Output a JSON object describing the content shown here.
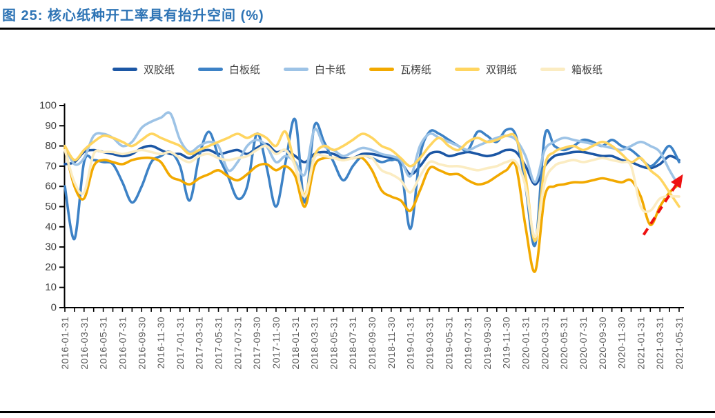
{
  "title": "图 25: 核心纸种开工率具有抬升空间 (%)",
  "colors": {
    "title_blue": "#2E74B5",
    "axis_black": "#000000",
    "x_label_gray": "#595959",
    "y_label_gray": "#3F3F3F",
    "arrow_red": "#EE1111"
  },
  "chart_data": {
    "type": "line",
    "title": "核心纸种开工率具有抬升空间 (%)",
    "ylim": [
      0,
      100
    ],
    "ytick_step": 10,
    "grid": false,
    "legend_position": "top",
    "x_start": "2016-01",
    "x_interval": "monthly",
    "x_tick_labels": [
      "2016-01-31",
      "2016-03-31",
      "2016-05-31",
      "2016-07-31",
      "2016-09-30",
      "2016-11-30",
      "2017-01-31",
      "2017-03-31",
      "2017-05-31",
      "2017-07-31",
      "2017-09-30",
      "2017-11-30",
      "2018-01-31",
      "2018-03-31",
      "2018-05-31",
      "2018-07-31",
      "2018-09-30",
      "2018-11-30",
      "2019-01-31",
      "2019-03-31",
      "2019-05-31",
      "2019-07-31",
      "2019-09-30",
      "2019-11-30",
      "2020-01-31",
      "2020-03-31",
      "2020-05-31",
      "2020-07-31",
      "2020-09-30",
      "2020-11-30",
      "2021-01-31",
      "2021-03-31",
      "2021-05-31"
    ],
    "series": [
      {
        "name": "双胶纸",
        "color": "#1C57A5",
        "values": [
          71,
          72,
          77,
          78,
          77,
          76,
          75,
          76,
          79,
          80,
          78,
          76,
          76,
          74,
          77,
          78,
          76,
          77,
          78,
          76,
          79,
          81,
          77,
          78,
          75,
          72,
          76,
          77,
          76,
          74,
          74,
          76,
          76,
          75,
          74,
          72,
          66,
          70,
          76,
          77,
          75,
          76,
          77,
          76,
          75,
          76,
          78,
          77,
          70,
          61,
          70,
          75,
          76,
          77,
          77,
          76,
          75,
          75,
          73,
          72,
          70,
          69,
          71,
          75,
          73
        ]
      },
      {
        "name": "白板纸",
        "color": "#3D82C6",
        "values": [
          60,
          34,
          72,
          73,
          72,
          71,
          62,
          52,
          60,
          72,
          75,
          77,
          70,
          53,
          75,
          87,
          75,
          65,
          54,
          60,
          86,
          70,
          50,
          72,
          93,
          52,
          90,
          82,
          72,
          63,
          70,
          75,
          74,
          72,
          73,
          70,
          39,
          75,
          87,
          86,
          83,
          80,
          78,
          87,
          85,
          82,
          88,
          85,
          60,
          31,
          85,
          80,
          78,
          80,
          83,
          82,
          80,
          83,
          80,
          78,
          74,
          70,
          74,
          80,
          72
        ]
      },
      {
        "name": "白卡纸",
        "color": "#9DC3E6",
        "values": [
          80,
          71,
          74,
          85,
          86,
          84,
          80,
          82,
          89,
          92,
          94,
          96,
          83,
          77,
          80,
          82,
          80,
          68,
          72,
          80,
          83,
          80,
          72,
          75,
          72,
          66,
          88,
          80,
          78,
          75,
          77,
          79,
          78,
          76,
          75,
          73,
          65,
          80,
          86,
          84,
          82,
          80,
          78,
          80,
          82,
          84,
          85,
          83,
          75,
          62,
          78,
          82,
          84,
          83,
          82,
          81,
          80,
          79,
          78,
          80,
          82,
          80,
          77,
          68,
          60
        ]
      },
      {
        "name": "瓦楞纸",
        "color": "#F2A900",
        "values": [
          79,
          60,
          54,
          70,
          73,
          72,
          71,
          73,
          74,
          74,
          72,
          65,
          63,
          61,
          64,
          66,
          68,
          65,
          63,
          66,
          70,
          71,
          68,
          70,
          65,
          50,
          70,
          74,
          74,
          73,
          74,
          74,
          68,
          58,
          55,
          53,
          48,
          58,
          69,
          68,
          66,
          66,
          63,
          61,
          62,
          65,
          68,
          70,
          40,
          18,
          55,
          60,
          61,
          62,
          62,
          63,
          64,
          63,
          62,
          63,
          55,
          41,
          50,
          57,
          61
        ]
      },
      {
        "name": "双铜纸",
        "color": "#FFD560",
        "values": [
          80,
          73,
          78,
          82,
          85,
          84,
          82,
          80,
          83,
          86,
          84,
          82,
          80,
          76,
          78,
          80,
          82,
          84,
          86,
          84,
          86,
          84,
          80,
          87,
          70,
          56,
          75,
          80,
          78,
          80,
          83,
          86,
          84,
          80,
          78,
          74,
          70,
          74,
          80,
          84,
          80,
          78,
          82,
          84,
          82,
          83,
          85,
          84,
          65,
          33,
          70,
          77,
          79,
          80,
          78,
          80,
          82,
          80,
          76,
          72,
          74,
          68,
          64,
          57,
          50
        ]
      },
      {
        "name": "箱板纸",
        "color": "#FBECC2",
        "values": [
          78,
          62,
          57,
          76,
          77,
          77,
          76,
          77,
          78,
          77,
          76,
          77,
          74,
          72,
          75,
          76,
          74,
          73,
          74,
          75,
          78,
          80,
          76,
          78,
          70,
          55,
          74,
          75,
          74,
          73,
          74,
          75,
          74,
          68,
          66,
          63,
          57,
          65,
          72,
          71,
          70,
          70,
          69,
          68,
          69,
          70,
          72,
          72,
          60,
          35,
          62,
          70,
          72,
          73,
          72,
          73,
          74,
          73,
          72,
          70,
          50,
          48,
          54,
          55,
          55
        ]
      }
    ],
    "annotation": {
      "type": "dashed-up-arrow",
      "color": "#EE1111",
      "from": {
        "month_index": 60.3,
        "value": 36
      },
      "to": {
        "month_index": 64.4,
        "value": 66
      }
    }
  }
}
